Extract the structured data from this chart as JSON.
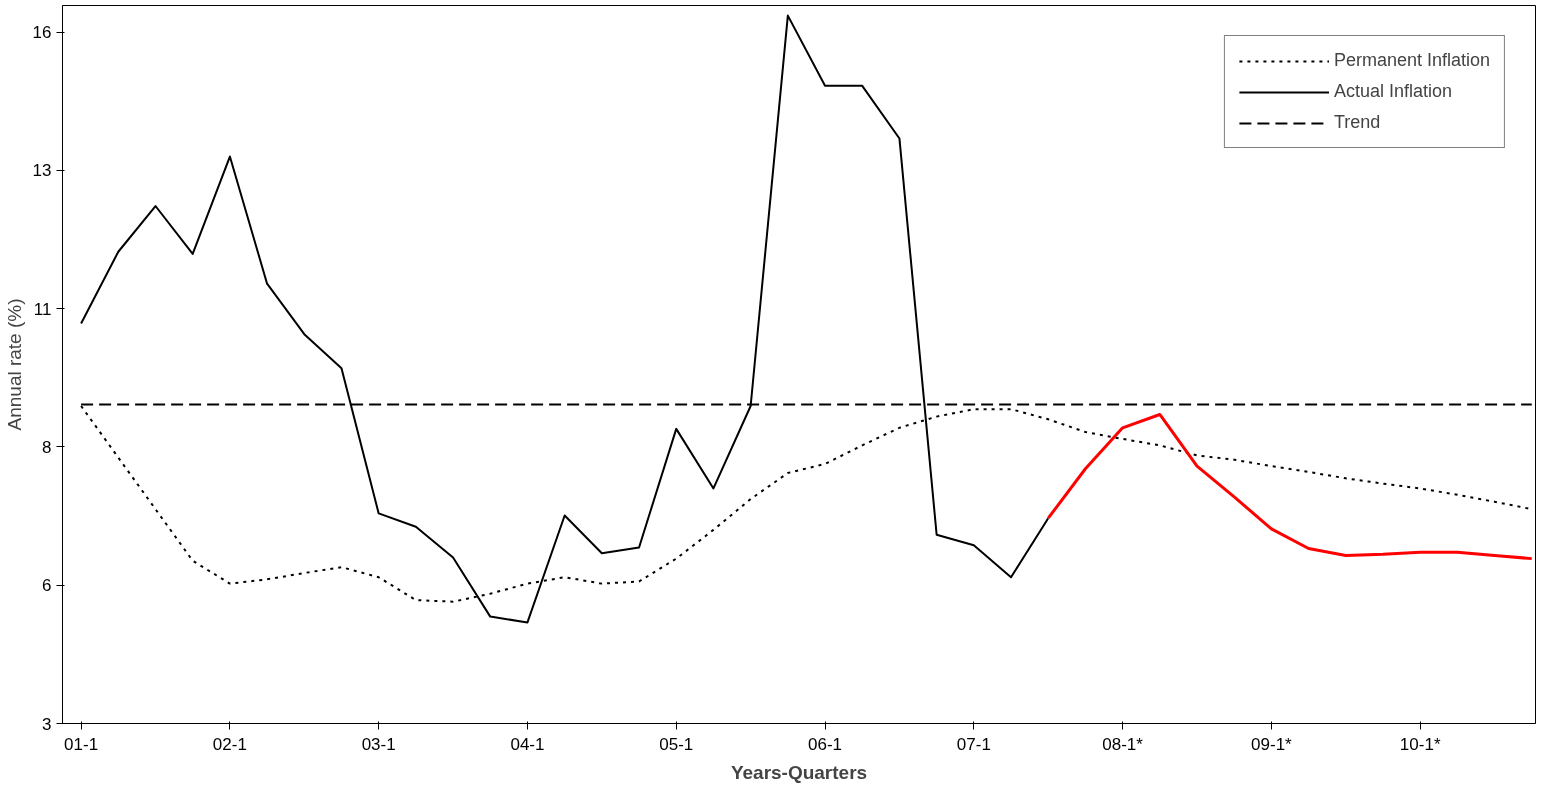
{
  "chart_data": {
    "type": "line",
    "xlabel": "Years-Quarters",
    "ylabel": "Annual rate (%)",
    "categories": [
      "01-1",
      null,
      null,
      null,
      "02-1",
      null,
      null,
      null,
      "03-1",
      null,
      null,
      null,
      "04-1",
      null,
      null,
      null,
      "05-1",
      null,
      null,
      null,
      "06-1",
      null,
      null,
      null,
      "07-1",
      null,
      null,
      null,
      "08-1*",
      null,
      null,
      null,
      "09-1*",
      null,
      null,
      null,
      "10-1*",
      null,
      null,
      null
    ],
    "ylim": [
      3,
      16.5
    ],
    "yticks": [
      {
        "value": 3,
        "label": "3"
      },
      {
        "value": 5.6,
        "label": "6"
      },
      {
        "value": 8.2,
        "label": "8"
      },
      {
        "value": 10.8,
        "label": "11"
      },
      {
        "value": 13.4,
        "label": "13"
      },
      {
        "value": 16,
        "label": "16"
      }
    ],
    "grid": false,
    "legend": "top right",
    "series": [
      {
        "name": "Permanent Inflation",
        "color": "#000000",
        "line_style": "dotted",
        "values": [
          8.97,
          8.0,
          7.03,
          6.06,
          5.63,
          5.71,
          5.83,
          5.94,
          5.75,
          5.32,
          5.29,
          5.44,
          5.63,
          5.75,
          5.63,
          5.67,
          6.1,
          6.64,
          7.22,
          7.71,
          7.88,
          8.23,
          8.56,
          8.77,
          8.91,
          8.91,
          8.72,
          8.48,
          8.35,
          8.23,
          8.04,
          7.96,
          7.84,
          7.73,
          7.61,
          7.51,
          7.42,
          7.3,
          7.17,
          7.03
        ]
      },
      {
        "name": "Actual Inflation",
        "color": "#000000",
        "line_style": "solid",
        "values": [
          10.52,
          11.87,
          12.73,
          11.83,
          13.66,
          11.27,
          10.32,
          9.68,
          6.95,
          6.7,
          6.12,
          5.01,
          4.9,
          6.91,
          6.2,
          6.31,
          8.54,
          7.42,
          8.97,
          16.31,
          14.99,
          14.99,
          14.0,
          6.55,
          6.35,
          5.75,
          6.86,
          null,
          null,
          null,
          null,
          null,
          null,
          null,
          null,
          null,
          null,
          null,
          null,
          null
        ]
      },
      {
        "name": "Trend",
        "color": "#000000",
        "line_style": "dashed",
        "values": [
          9.0,
          9.0,
          9.0,
          9.0,
          9.0,
          9.0,
          9.0,
          9.0,
          9.0,
          9.0,
          9.0,
          9.0,
          9.0,
          9.0,
          9.0,
          9.0,
          9.0,
          9.0,
          9.0,
          9.0,
          9.0,
          9.0,
          9.0,
          9.0,
          9.0,
          9.0,
          9.0,
          9.0,
          9.0,
          9.0,
          9.0,
          9.0,
          9.0,
          9.0,
          9.0,
          9.0,
          9.0,
          9.0,
          9.0,
          9.0
        ]
      },
      {
        "color": "#ff0000",
        "line_style": "solid",
        "values": [
          null,
          null,
          null,
          null,
          null,
          null,
          null,
          null,
          null,
          null,
          null,
          null,
          null,
          null,
          null,
          null,
          null,
          null,
          null,
          null,
          null,
          null,
          null,
          null,
          null,
          null,
          6.86,
          7.79,
          8.56,
          8.81,
          7.84,
          7.26,
          6.66,
          6.29,
          6.16,
          6.18,
          6.22,
          6.22,
          6.16,
          6.1
        ]
      }
    ]
  }
}
